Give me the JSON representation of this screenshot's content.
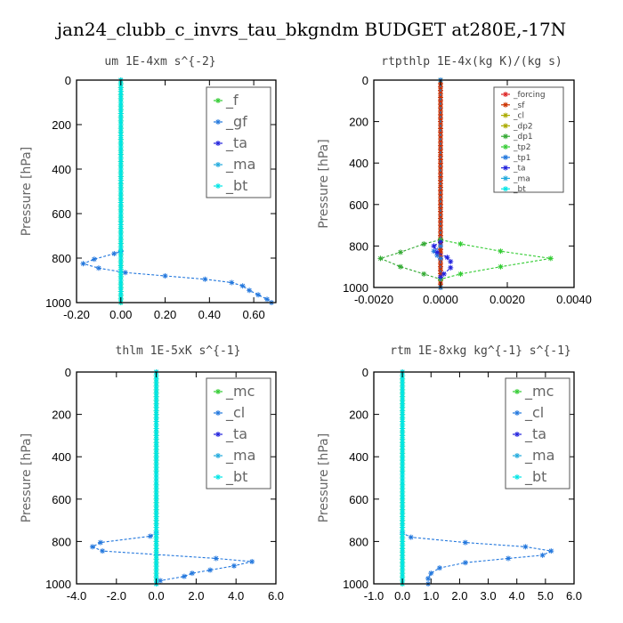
{
  "title": "jan24_clubb_c_invrs_tau_bkgndm  BUDGET at280E,-17N",
  "colors": {
    "f": "#33cc33",
    "gf": "#2277dd",
    "ta": "#2222dd",
    "ma": "#22aadd",
    "bt": "#00e5e5",
    "mc": "#33cc33",
    "cl": "#2277dd",
    "forcing": "#dd2222",
    "sf": "#cc3300",
    "dp2": "#aaaa00",
    "dp1": "#33aa33",
    "tp2": "#33cc33",
    "tp1": "#2277dd"
  },
  "chart_data": [
    {
      "type": "line",
      "title": "um   1E-4xm s^{-2}",
      "ylabel": "Pressure [hPa]",
      "xlim": [
        -0.2,
        0.7
      ],
      "ylim": [
        0,
        1000
      ],
      "xticks": [
        -0.2,
        0,
        0.2,
        0.4,
        0.6
      ],
      "xtick_labels": [
        "-0.20",
        "0.00",
        "0.20",
        "0.40",
        "0.60"
      ],
      "yticks": [
        0,
        200,
        400,
        600,
        800,
        1000
      ],
      "ytick_labels": [
        "0",
        "200",
        "400",
        "600",
        "800",
        "1000"
      ],
      "legend": "top-right",
      "series": [
        {
          "name": "_f",
          "color_key": "f",
          "x": [
            0,
            0
          ],
          "y": [
            0,
            1000
          ]
        },
        {
          "name": "_gf",
          "color_key": "gf",
          "x": [
            0,
            0,
            -0.03,
            -0.12,
            -0.17,
            -0.1,
            0.02,
            0.2,
            0.38,
            0.5,
            0.55,
            0.58,
            0.62,
            0.66,
            0.68
          ],
          "y": [
            0,
            770,
            780,
            805,
            825,
            845,
            865,
            880,
            895,
            910,
            925,
            945,
            965,
            985,
            1000
          ]
        },
        {
          "name": "_ta",
          "color_key": "ta",
          "x": [],
          "y": []
        },
        {
          "name": "_ma",
          "color_key": "ma",
          "x": [],
          "y": []
        },
        {
          "name": "_bt",
          "color_key": "bt",
          "x": [
            0,
            0
          ],
          "y": [
            0,
            1000
          ]
        }
      ]
    },
    {
      "type": "line",
      "title": "rtpthlp  1E-4x(kg K)/(kg s)",
      "ylabel": "Pressure [hPa]",
      "xlim": [
        -0.002,
        0.004
      ],
      "ylim": [
        0,
        1000
      ],
      "xticks": [
        -0.002,
        0,
        0.002,
        0.004
      ],
      "xtick_labels": [
        "-0.0020",
        "0.0000",
        "0.0020",
        "0.0040"
      ],
      "yticks": [
        0,
        200,
        400,
        600,
        800,
        1000
      ],
      "ytick_labels": [
        "0",
        "200",
        "400",
        "600",
        "800",
        "1000"
      ],
      "legend": "top-right",
      "series": [
        {
          "name": "_forcing",
          "color_key": "forcing",
          "x": [
            0,
            0
          ],
          "y": [
            0,
            1000
          ]
        },
        {
          "name": "_sf",
          "color_key": "sf",
          "x": [
            0,
            0
          ],
          "y": [
            0,
            1000
          ]
        },
        {
          "name": "_cl",
          "color_key": "dp2",
          "x": [],
          "y": []
        },
        {
          "name": "_dp2",
          "color_key": "dp2",
          "x": [],
          "y": []
        },
        {
          "name": "_dp1",
          "color_key": "dp1",
          "x": [
            0,
            0,
            -0.0005,
            -0.0012,
            -0.0018,
            -0.0012,
            -0.0005,
            0
          ],
          "y": [
            0,
            770,
            790,
            830,
            860,
            900,
            935,
            960
          ]
        },
        {
          "name": "_tp2",
          "color_key": "tp2",
          "x": [
            0,
            0,
            0.0006,
            0.0018,
            0.0033,
            0.0018,
            0.0006,
            0,
            0
          ],
          "y": [
            0,
            770,
            790,
            825,
            860,
            900,
            935,
            960,
            1000
          ]
        },
        {
          "name": "_tp1",
          "color_key": "tp1",
          "x": [
            0,
            0,
            -0.0002,
            -0.0001,
            0,
            0
          ],
          "y": [
            0,
            800,
            825,
            845,
            860,
            1000
          ]
        },
        {
          "name": "_ta",
          "color_key": "ta",
          "x": [
            0,
            -0.0002,
            -0.0001,
            0.0002,
            0.0003,
            0.0003,
            0.0001,
            0
          ],
          "y": [
            780,
            800,
            830,
            855,
            875,
            905,
            935,
            950
          ]
        },
        {
          "name": "_ma",
          "color_key": "ma",
          "x": [],
          "y": []
        },
        {
          "name": "_bt",
          "color_key": "bt",
          "x": [],
          "y": []
        }
      ]
    },
    {
      "type": "line",
      "title": "thlm  1E-5xK s^{-1}",
      "ylabel": "Pressure [hPa]",
      "xlim": [
        -4,
        6
      ],
      "ylim": [
        0,
        1000
      ],
      "xticks": [
        -4,
        -2,
        0,
        2,
        4,
        6
      ],
      "xtick_labels": [
        "-4.0",
        "-2.0",
        "0.0",
        "2.0",
        "4.0",
        "6.0"
      ],
      "yticks": [
        0,
        200,
        400,
        600,
        800,
        1000
      ],
      "ytick_labels": [
        "0",
        "200",
        "400",
        "600",
        "800",
        "1000"
      ],
      "legend": "top-right",
      "series": [
        {
          "name": "_mc",
          "color_key": "mc",
          "x": [
            0,
            0
          ],
          "y": [
            0,
            1000
          ]
        },
        {
          "name": "_cl",
          "color_key": "cl",
          "x": [
            0,
            0,
            -0.3,
            -2.8,
            -3.2,
            -2.7,
            3.0,
            4.8,
            3.9,
            2.7,
            1.8,
            1.4,
            0.2,
            0
          ],
          "y": [
            0,
            760,
            775,
            805,
            825,
            845,
            880,
            895,
            915,
            935,
            950,
            965,
            985,
            1000
          ]
        },
        {
          "name": "_ta",
          "color_key": "ta",
          "x": [],
          "y": []
        },
        {
          "name": "_ma",
          "color_key": "ma",
          "x": [],
          "y": []
        },
        {
          "name": "_bt",
          "color_key": "bt",
          "x": [
            0,
            0
          ],
          "y": [
            0,
            1000
          ]
        }
      ]
    },
    {
      "type": "line",
      "title": "rtm  1E-8xkg kg^{-1} s^{-1}",
      "ylabel": "Pressure [hPa]",
      "xlim": [
        -1,
        6
      ],
      "ylim": [
        0,
        1000
      ],
      "xticks": [
        -1,
        0,
        1,
        2,
        3,
        4,
        5,
        6
      ],
      "xtick_labels": [
        "-1.0",
        "0.0",
        "1.0",
        "2.0",
        "3.0",
        "4.0",
        "5.0",
        "6.0"
      ],
      "yticks": [
        0,
        200,
        400,
        600,
        800,
        1000
      ],
      "ytick_labels": [
        "0",
        "200",
        "400",
        "600",
        "800",
        "1000"
      ],
      "legend": "top-right",
      "series": [
        {
          "name": "_mc",
          "color_key": "mc",
          "x": [
            0,
            0
          ],
          "y": [
            0,
            1000
          ]
        },
        {
          "name": "_cl",
          "color_key": "cl",
          "x": [
            0,
            0,
            0.3,
            2.2,
            4.3,
            5.2,
            4.9,
            3.7,
            2.2,
            1.3,
            1.0,
            0.9,
            0.9
          ],
          "y": [
            0,
            760,
            780,
            805,
            825,
            845,
            865,
            880,
            900,
            925,
            950,
            975,
            1000
          ]
        },
        {
          "name": "_ta",
          "color_key": "ta",
          "x": [],
          "y": []
        },
        {
          "name": "_ma",
          "color_key": "ma",
          "x": [],
          "y": []
        },
        {
          "name": "_bt",
          "color_key": "bt",
          "x": [
            0,
            0
          ],
          "y": [
            0,
            1000
          ]
        }
      ]
    }
  ]
}
